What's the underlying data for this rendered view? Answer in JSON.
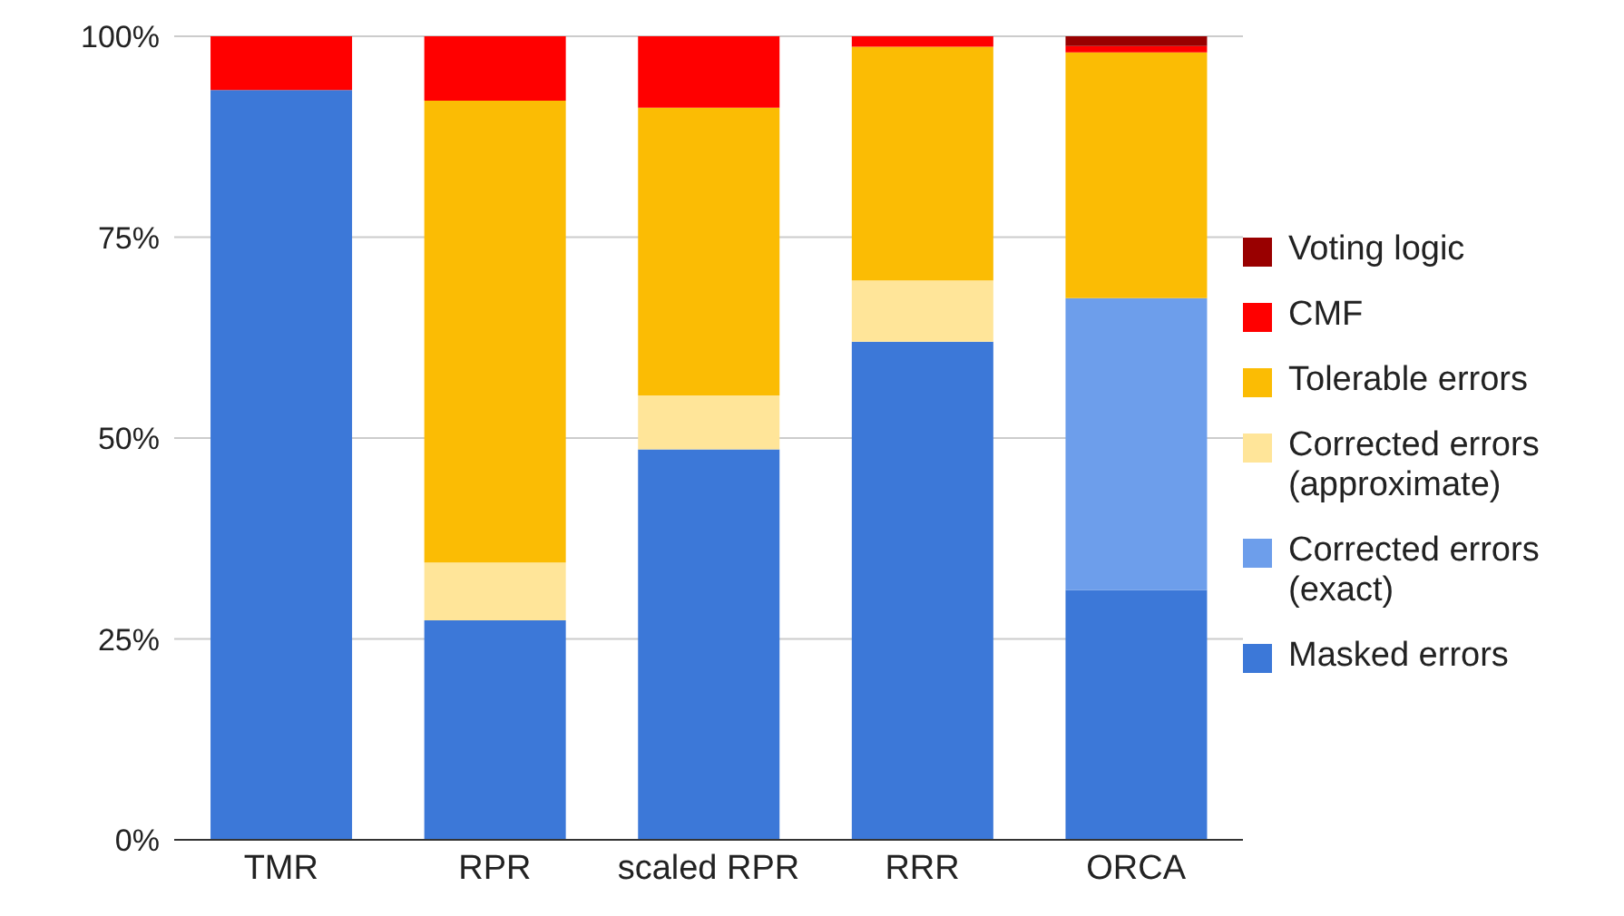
{
  "chart_data": {
    "type": "bar",
    "stacked": true,
    "categories": [
      "TMR",
      "RPR",
      "scaled RPR",
      "RRR",
      "ORCA"
    ],
    "series": [
      {
        "name": "Masked errors",
        "color": "#3c78d8",
        "values": [
          93.3,
          27.3,
          48.6,
          62.0,
          31.1
        ]
      },
      {
        "name": "Corrected errors (exact)",
        "color": "#6d9eeb",
        "values": [
          0,
          0,
          0,
          0,
          36.3
        ]
      },
      {
        "name": "Corrected errors (approximate)",
        "color": "#ffe599",
        "values": [
          0,
          7.2,
          6.7,
          7.6,
          0
        ]
      },
      {
        "name": "Tolerable errors",
        "color": "#fbbc04",
        "values": [
          0,
          57.5,
          35.8,
          29.1,
          30.6
        ]
      },
      {
        "name": "CMF",
        "color": "#ff0000",
        "values": [
          6.7,
          8.0,
          8.9,
          1.3,
          0.8
        ]
      },
      {
        "name": "Voting logic",
        "color": "#990000",
        "values": [
          0,
          0,
          0,
          0,
          1.2
        ]
      }
    ],
    "ylim": [
      0,
      100
    ],
    "yticks": [
      {
        "value": 0,
        "label": "0%"
      },
      {
        "value": 25,
        "label": "25%"
      },
      {
        "value": 50,
        "label": "50%"
      },
      {
        "value": 75,
        "label": "75%"
      },
      {
        "value": 100,
        "label": "100%"
      }
    ],
    "grid": "y",
    "legend": "right"
  }
}
